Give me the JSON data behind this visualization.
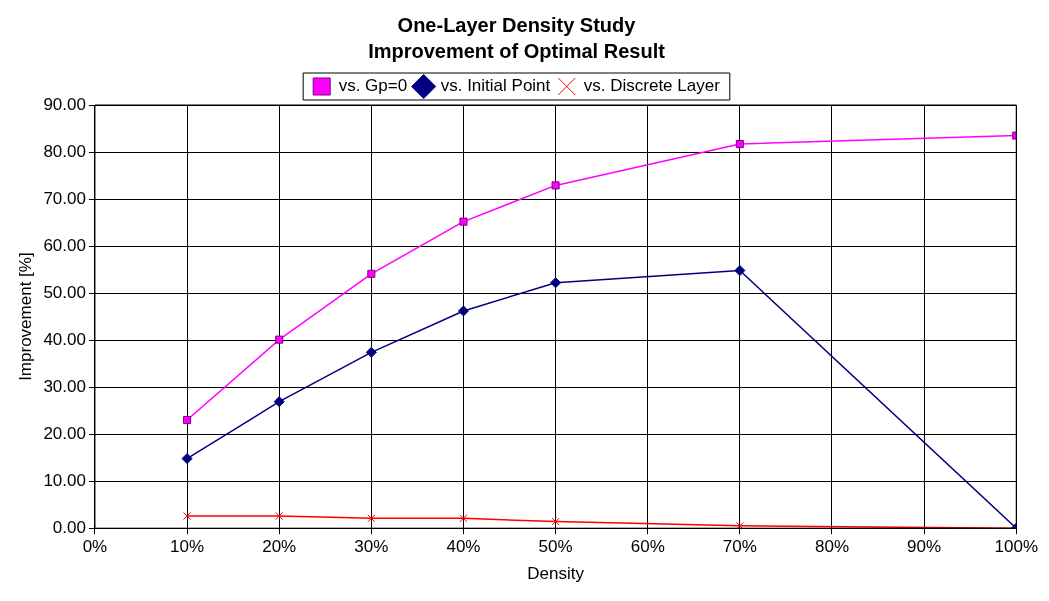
{
  "chart_data": {
    "type": "line",
    "title": "One-Layer Density Study",
    "subtitle": "Improvement of Optimal Result",
    "xlabel": "Density",
    "ylabel": "Improvement [%]",
    "x": [
      10,
      20,
      30,
      40,
      50,
      70,
      100
    ],
    "series": [
      {
        "name": "vs. Gp=0",
        "color": "#ff00ff",
        "marker": "square",
        "values": [
          23.0,
          40.1,
          54.1,
          65.2,
          72.9,
          81.7,
          83.5
        ]
      },
      {
        "name": "vs. Initial Point",
        "color": "#000080",
        "marker": "diamond",
        "values": [
          14.8,
          26.9,
          37.4,
          46.2,
          52.2,
          54.8,
          0.0
        ]
      },
      {
        "name": "vs. Discrete Layer",
        "color": "#ff0000",
        "marker": "cross",
        "values": [
          2.6,
          2.6,
          2.1,
          2.1,
          1.4,
          0.5,
          0.0
        ]
      }
    ],
    "xlim": [
      0,
      100
    ],
    "xticks": [
      {
        "value": 0,
        "label": "0%"
      },
      {
        "value": 10,
        "label": "10%"
      },
      {
        "value": 20,
        "label": "20%"
      },
      {
        "value": 30,
        "label": "30%"
      },
      {
        "value": 40,
        "label": "40%"
      },
      {
        "value": 50,
        "label": "50%"
      },
      {
        "value": 60,
        "label": "60%"
      },
      {
        "value": 70,
        "label": "70%"
      },
      {
        "value": 80,
        "label": "80%"
      },
      {
        "value": 90,
        "label": "90%"
      },
      {
        "value": 100,
        "label": "100%"
      }
    ],
    "ylim": [
      0,
      90
    ],
    "yticks": [
      {
        "value": 0,
        "label": "0.00"
      },
      {
        "value": 10,
        "label": "10.00"
      },
      {
        "value": 20,
        "label": "20.00"
      },
      {
        "value": 30,
        "label": "30.00"
      },
      {
        "value": 40,
        "label": "40.00"
      },
      {
        "value": 50,
        "label": "50.00"
      },
      {
        "value": 60,
        "label": "60.00"
      },
      {
        "value": 70,
        "label": "70.00"
      },
      {
        "value": 80,
        "label": "80.00"
      },
      {
        "value": 90,
        "label": "90.00"
      }
    ],
    "grid": true,
    "legend": "top",
    "line_style": "solid"
  }
}
